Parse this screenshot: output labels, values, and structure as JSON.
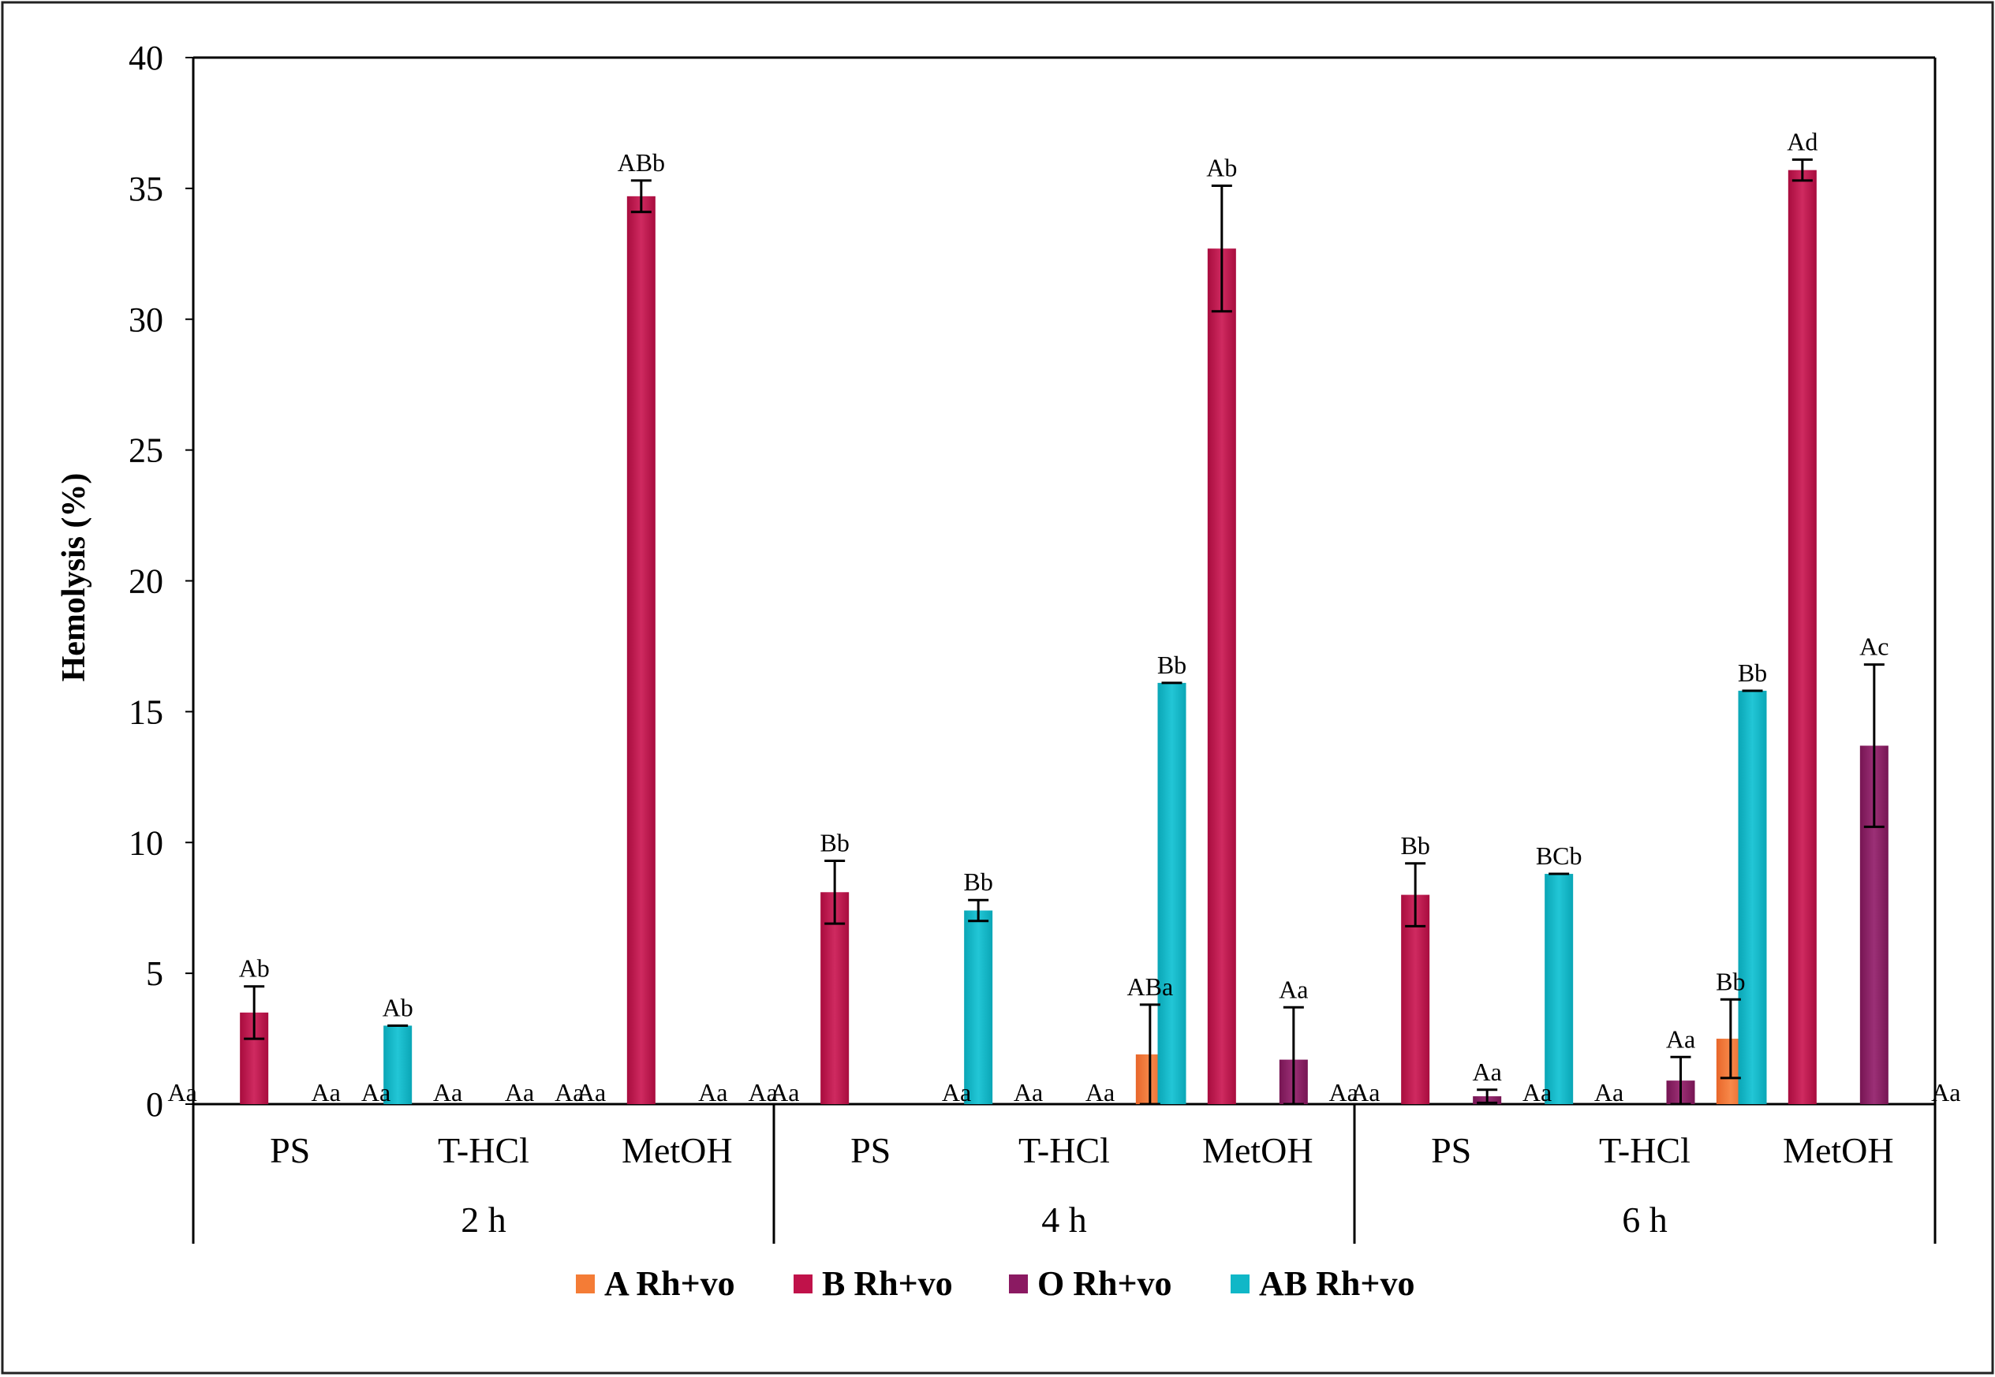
{
  "chart_data": {
    "type": "bar",
    "title": "",
    "ylabel": "Hemolysis (%)",
    "xlabel": "",
    "ylim": [
      0,
      40
    ],
    "yticks": [
      "0",
      "5",
      "10",
      "15",
      "20",
      "25",
      "30",
      "35",
      "40"
    ],
    "grid": false,
    "legend_position": "bottom",
    "groups": [
      {
        "label": "2 h",
        "categories": [
          "PS",
          "T-HCl",
          "MetOH"
        ]
      },
      {
        "label": "4 h",
        "categories": [
          "PS",
          "T-HCl",
          "MetOH"
        ]
      },
      {
        "label": "6 h",
        "categories": [
          "PS",
          "T-HCl",
          "MetOH"
        ]
      }
    ],
    "series": [
      {
        "name": "A Rh+vo",
        "color": "#f47c36",
        "values": [
          0,
          0,
          0,
          0,
          0,
          1.9,
          0,
          0,
          2.5
        ],
        "errors": [
          0,
          0,
          0,
          0,
          0,
          1.9,
          0,
          0,
          1.5
        ],
        "labels": [
          "Aa",
          "Aa",
          "Aa",
          "Aa",
          "Aa",
          "ABa",
          "Aa",
          "Aa",
          "Bb"
        ]
      },
      {
        "name": "B Rh+vo",
        "color": "#c0124a",
        "values": [
          3.5,
          0,
          34.7,
          8.1,
          0,
          32.7,
          8.0,
          0,
          35.7
        ],
        "errors": [
          1.0,
          0,
          0.6,
          1.2,
          0,
          2.4,
          1.2,
          0,
          0.4
        ],
        "labels": [
          "Ab",
          "Aa",
          "ABb",
          "Bb",
          "Aa",
          "Ab",
          "Bb",
          "Aa",
          "Ad"
        ]
      },
      {
        "name": "O Rh+vo",
        "color": "#8b1a62",
        "values": [
          0,
          0,
          0,
          0,
          0,
          1.7,
          0.3,
          0.9,
          13.7
        ],
        "errors": [
          0,
          0,
          0,
          0,
          0,
          2.0,
          0.25,
          0.9,
          3.1
        ],
        "labels": [
          "Aa",
          "Aa",
          "Aa",
          "",
          "Aa",
          "Aa",
          "Aa",
          "Aa",
          "Ac"
        ]
      },
      {
        "name": "AB Rh+vo",
        "color": "#10b7c7",
        "values": [
          3.0,
          0,
          0,
          7.4,
          16.1,
          0,
          8.8,
          15.8,
          0
        ],
        "errors": [
          0,
          0,
          0,
          0.4,
          0,
          0,
          0,
          0,
          0
        ],
        "labels": [
          "Ab",
          "Aa",
          "Aa",
          "Bb",
          "Bb",
          "Aa",
          "BCb",
          "Bb",
          "Aa"
        ]
      }
    ]
  }
}
